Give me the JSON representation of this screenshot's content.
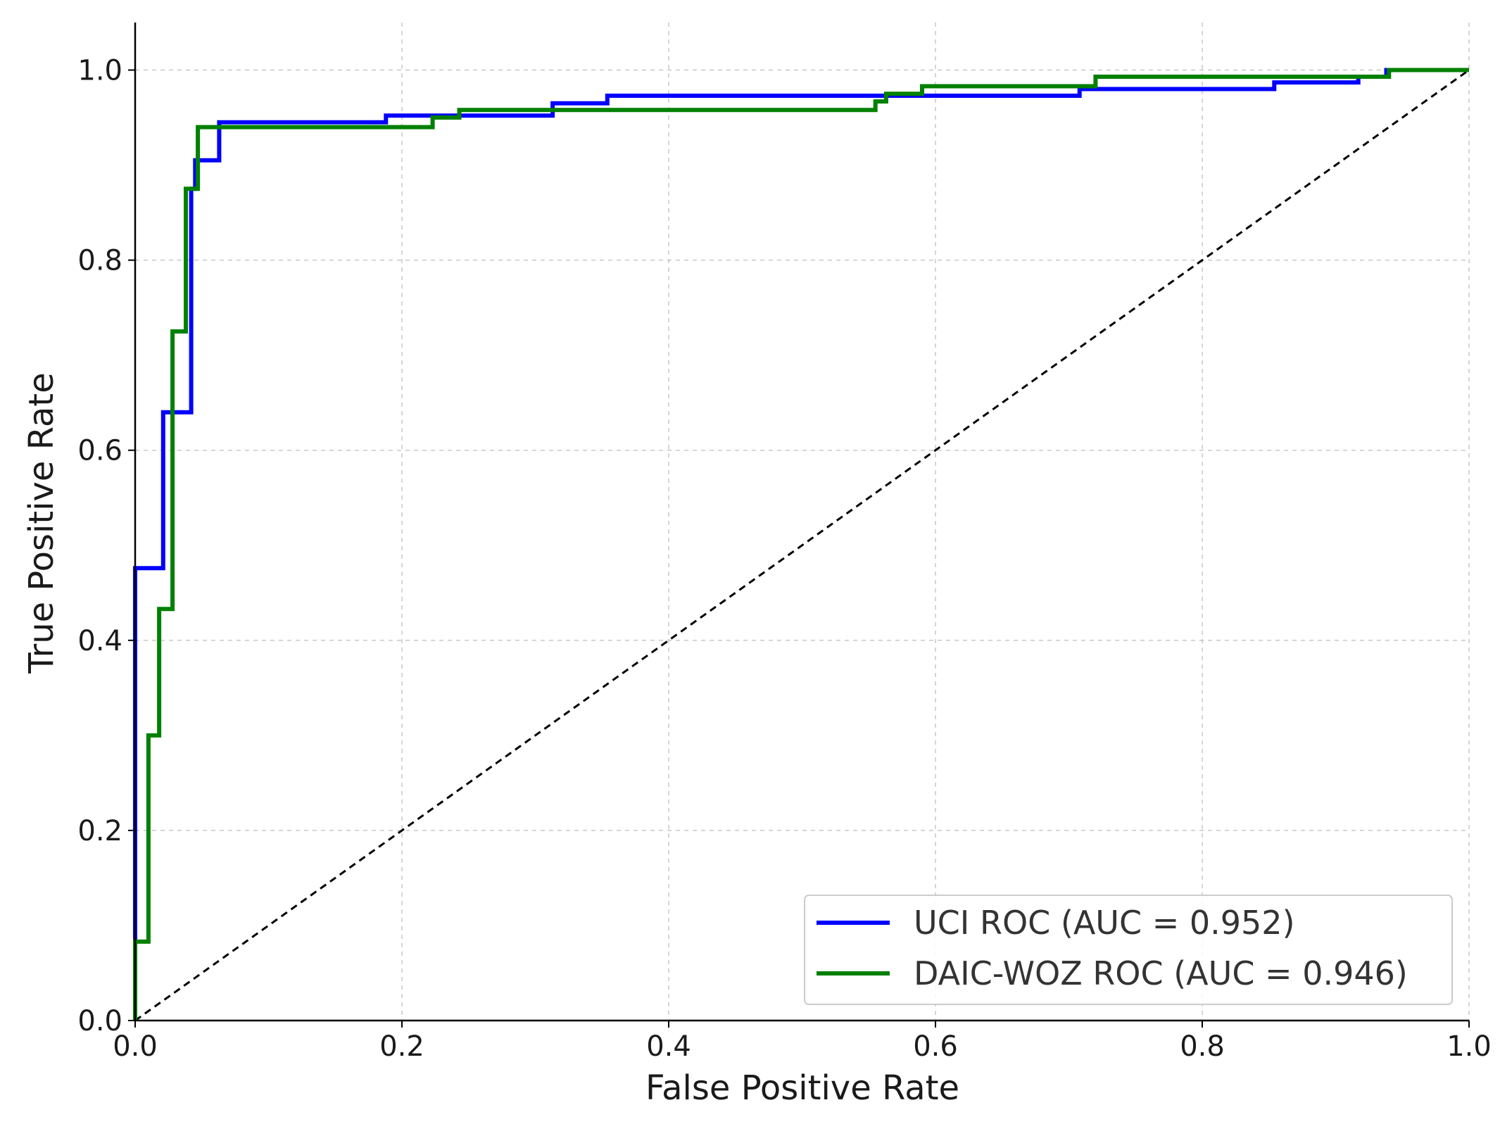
{
  "chart_data": {
    "type": "line",
    "xlabel": "False Positive Rate",
    "ylabel": "True Positive Rate",
    "xlim": [
      0,
      1
    ],
    "ylim": [
      0,
      1.05
    ],
    "xticks": [
      "0.0",
      "0.2",
      "0.4",
      "0.6",
      "0.8",
      "1.0"
    ],
    "yticks": [
      "0.0",
      "0.2",
      "0.4",
      "0.6",
      "0.8",
      "1.0"
    ],
    "grid": true,
    "legend_position": "bottom-right",
    "series": [
      {
        "name": "UCI ROC (AUC = 0.952)",
        "color": "#0000ff",
        "x": [
          0.0,
          0.0,
          0.021,
          0.021,
          0.042,
          0.042,
          0.045,
          0.045,
          0.063,
          0.063,
          0.188,
          0.188,
          0.313,
          0.313,
          0.354,
          0.354,
          0.563,
          0.563,
          0.708,
          0.708,
          0.854,
          0.854,
          0.917,
          0.917,
          0.938,
          0.938,
          1.0
        ],
        "y": [
          0.0,
          0.476,
          0.476,
          0.64,
          0.64,
          0.875,
          0.875,
          0.905,
          0.905,
          0.945,
          0.945,
          0.952,
          0.952,
          0.965,
          0.965,
          0.973,
          0.973,
          0.973,
          0.973,
          0.98,
          0.98,
          0.987,
          0.987,
          0.993,
          0.993,
          1.0,
          1.0
        ]
      },
      {
        "name": "DAIC-WOZ ROC (AUC = 0.946)",
        "color": "#008000",
        "x": [
          0.0,
          0.0,
          0.01,
          0.01,
          0.018,
          0.018,
          0.028,
          0.028,
          0.038,
          0.038,
          0.047,
          0.047,
          0.223,
          0.223,
          0.243,
          0.243,
          0.555,
          0.555,
          0.563,
          0.563,
          0.59,
          0.59,
          0.72,
          0.72,
          0.94,
          0.94,
          1.0
        ],
        "y": [
          0.0,
          0.083,
          0.083,
          0.3,
          0.3,
          0.433,
          0.433,
          0.725,
          0.725,
          0.875,
          0.875,
          0.94,
          0.94,
          0.95,
          0.95,
          0.958,
          0.958,
          0.967,
          0.967,
          0.975,
          0.975,
          0.983,
          0.983,
          0.993,
          0.993,
          1.0,
          1.0
        ]
      }
    ],
    "reference_line": {
      "x": [
        0,
        1
      ],
      "y": [
        0,
        1
      ],
      "color": "#000000",
      "style": "dashed"
    }
  }
}
